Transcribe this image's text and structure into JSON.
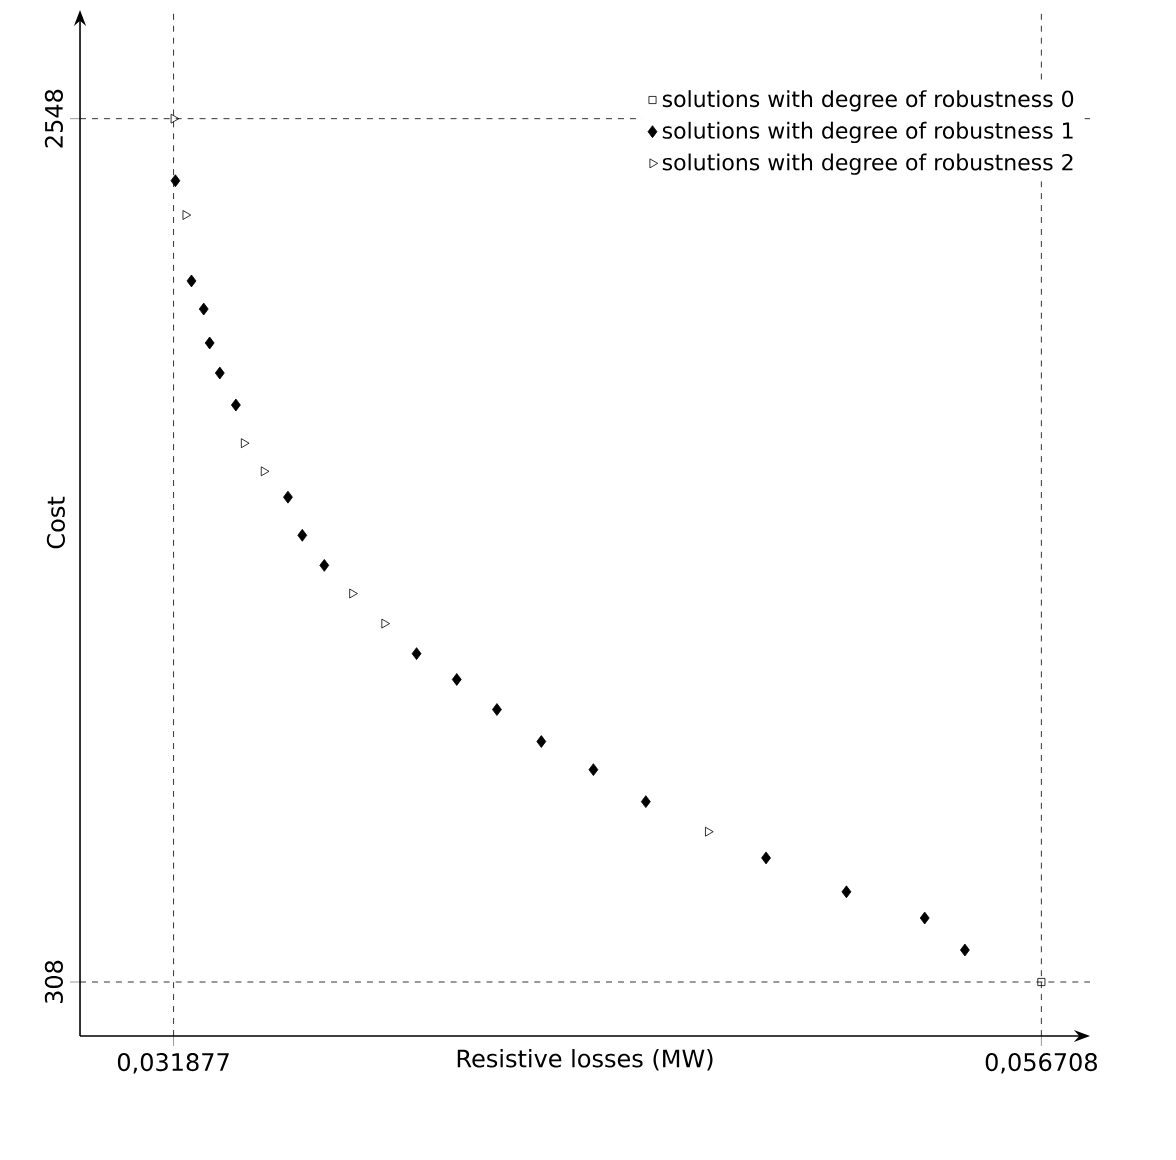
{
  "chart_data": {
    "type": "scatter",
    "xlabel": "Resistive losses (MW)",
    "ylabel": "Cost",
    "xlim": [
      0.0292,
      0.0581
    ],
    "ylim": [
      168,
      2830
    ],
    "xticks": [
      {
        "value": 0.031877,
        "label": "0,031877"
      },
      {
        "value": 0.056708,
        "label": "0,056708"
      }
    ],
    "yticks": [
      308,
      2548
    ],
    "ref_lines": [
      {
        "axis": "x",
        "value": 0.031877,
        "line_style": "dashed",
        "color": "#000000"
      },
      {
        "axis": "x",
        "value": 0.056708,
        "line_style": "dashed",
        "color": "#000000"
      },
      {
        "axis": "y",
        "value": 308,
        "line_style": "dashed",
        "color": "#000000"
      },
      {
        "axis": "y",
        "value": 2548,
        "line_style": "dashed",
        "color": "#000000"
      }
    ],
    "legend": "top right",
    "grid": false,
    "series": [
      {
        "name": "solutions with degree of robustness 0",
        "color": "#000000",
        "marker": "square",
        "x": [
          0.056708
        ],
        "values": [
          308
        ]
      },
      {
        "name": "solutions with degree of robustness 1",
        "color": "#000000",
        "marker": "diamond",
        "x": [
          0.03193,
          0.03239,
          0.03274,
          0.03291,
          0.0332,
          0.03366,
          0.03515,
          0.03556,
          0.03619,
          0.03883,
          0.03998,
          0.04113,
          0.0424,
          0.04389,
          0.04539,
          0.04883,
          0.05113,
          0.05337,
          0.05452
        ],
        "values": [
          2387,
          2127,
          2054,
          1966,
          1888,
          1805,
          1566,
          1467,
          1389,
          1160,
          1093,
          1015,
          932,
          859,
          776,
          630,
          542,
          474,
          391
        ]
      },
      {
        "name": "solutions with degree of robustness 2",
        "color": "#000000",
        "marker": "triangle",
        "x": [
          0.03188,
          0.03222,
          0.03389,
          0.03446,
          0.03699,
          0.03791,
          0.04717
        ],
        "values": [
          2548,
          2298,
          1706,
          1633,
          1316,
          1238,
          698
        ]
      }
    ]
  }
}
